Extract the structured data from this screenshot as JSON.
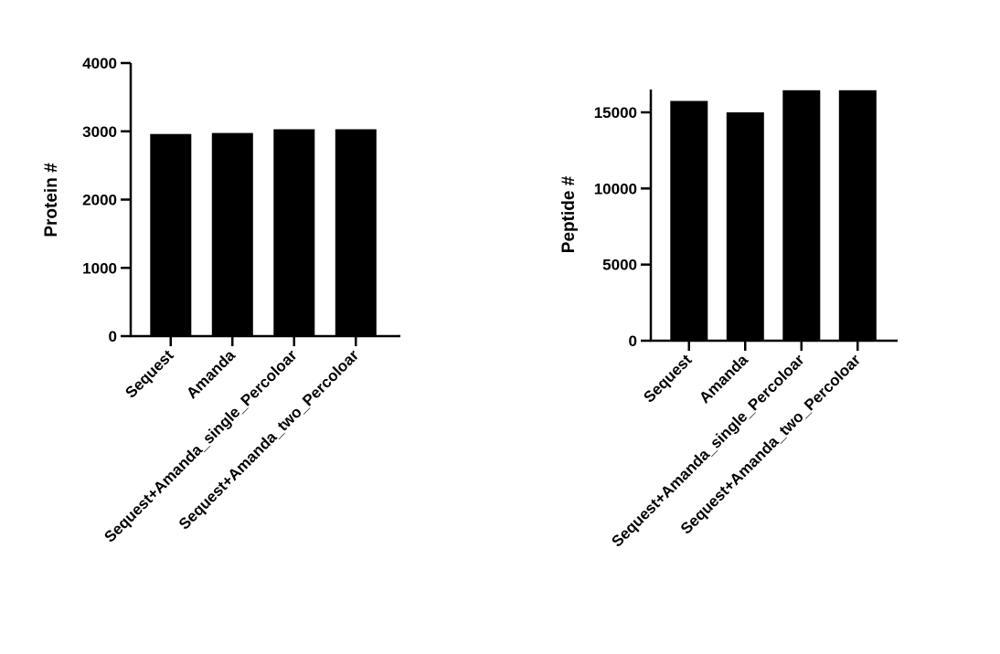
{
  "chart_data": [
    {
      "type": "bar",
      "categories": [
        "Sequest",
        "Amanda",
        "Sequest+Amanda_single_Percoloar",
        "Sequest+Amanda_two_Percoloar"
      ],
      "values": [
        2960,
        2975,
        3030,
        3030
      ],
      "ylabel": "Protein #",
      "xlabel": "",
      "ylim": [
        0,
        4000
      ],
      "yticks": [
        "0",
        "1000",
        "2000",
        "3000",
        "4000"
      ],
      "grid": false,
      "bar_color": "#000000"
    },
    {
      "type": "bar",
      "categories": [
        "Sequest",
        "Amanda",
        "Sequest+Amanda_single_Percoloar",
        "Sequest+Amanda_two_Percoloar"
      ],
      "values": [
        15750,
        15000,
        16450,
        16450
      ],
      "ylabel": "Peptide #",
      "xlabel": "",
      "ylim": [
        0,
        16500
      ],
      "yticks": [
        "0",
        "5000",
        "10000",
        "15000"
      ],
      "grid": false,
      "bar_color": "#000000"
    }
  ]
}
